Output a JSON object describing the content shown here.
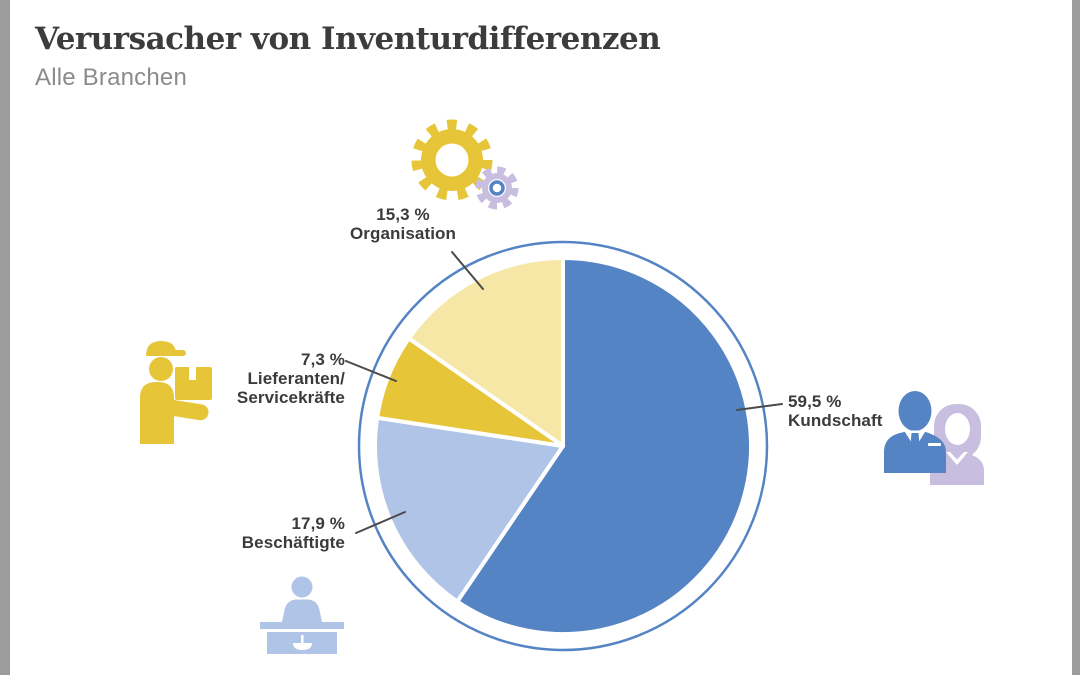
{
  "page": {
    "title": "Verursacher von Inventurdifferenzen",
    "subtitle": "Alle Branchen"
  },
  "colors": {
    "blue": "#5584C4",
    "light_blue": "#AFC4E6",
    "gold": "#E6C638",
    "pale_yellow": "#F6E7A6",
    "lavender": "#C8BEE0",
    "ring": "#5584C4",
    "title_text": "#3C3C3B",
    "subtitle_text": "#8B8B8B",
    "label_text": "#3B3B3B",
    "leader_line": "#4A4A4A",
    "edge_gray": "#9C9C9C"
  },
  "chart_data": {
    "type": "pie",
    "title": "Verursacher von Inventurdifferenzen",
    "subtitle": "Alle Branchen",
    "unit": "%",
    "start_angle_deg": 0,
    "direction": "clockwise",
    "slices": [
      {
        "label": "Kundschaft",
        "value": 59.5,
        "display": "59,5 %",
        "color": "#5584C4"
      },
      {
        "label": "Beschäftigte",
        "value": 17.9,
        "display": "17,9 %",
        "color": "#AFC4E6"
      },
      {
        "label": "Lieferanten/Servicekräfte",
        "value": 7.3,
        "display": "7,3 %",
        "color": "#E6C638"
      },
      {
        "label": "Organisation",
        "value": 15.3,
        "display": "15,3 %",
        "color": "#F6E7A6"
      }
    ],
    "legend": "none",
    "callout_labels": true
  },
  "labels": {
    "organisation": {
      "pct": "15,3 %",
      "name": "Organisation"
    },
    "lieferanten": {
      "pct": "7,3 %",
      "line1": "Lieferanten/",
      "line2": "Servicekräfte"
    },
    "beschaeftigte": {
      "pct": "17,9 %",
      "name": "Beschäftigte"
    },
    "kundschaft": {
      "pct": "59,5 %",
      "name": "Kundschaft"
    }
  },
  "icons": {
    "organisation": "gears-icon",
    "lieferanten": "delivery-worker-box-icon",
    "beschaeftigte": "cashier-counter-icon",
    "kundschaft": "customers-pair-icon"
  }
}
